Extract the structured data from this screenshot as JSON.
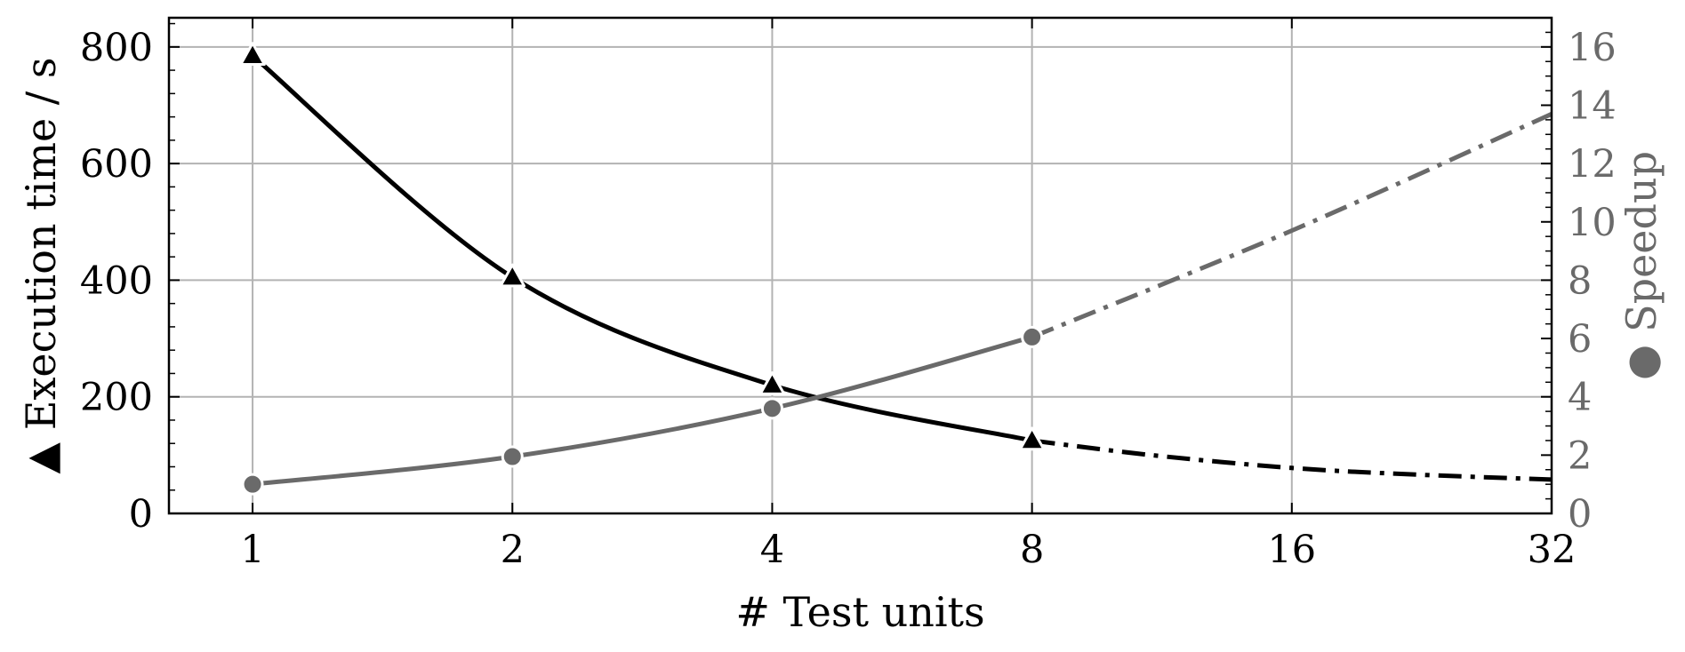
{
  "chart_data": {
    "type": "line",
    "x_scale": "log2",
    "x_ticks": [
      1,
      2,
      4,
      8,
      16,
      32
    ],
    "x_tick_labels": [
      "1",
      "2",
      "4",
      "8",
      "16",
      "32"
    ],
    "xlim": [
      0.8,
      32
    ],
    "xlabel": "# Test units",
    "grid": true,
    "y_left": {
      "label": "Execution time / s",
      "marker_label": "▲",
      "lim": [
        0,
        850
      ],
      "ticks": [
        0,
        200,
        400,
        600,
        800
      ],
      "tick_labels": [
        "0",
        "200",
        "400",
        "600",
        "800"
      ],
      "color": "#000000"
    },
    "y_right": {
      "label": "Speedup",
      "marker_label": "●",
      "lim": [
        0,
        17
      ],
      "ticks": [
        0,
        2,
        4,
        6,
        8,
        10,
        12,
        14,
        16
      ],
      "tick_labels": [
        "0",
        "2",
        "4",
        "6",
        "8",
        "10",
        "12",
        "14",
        "16"
      ],
      "color": "#6a6a6a"
    },
    "series": [
      {
        "axis": "left",
        "marker": "triangle",
        "color": "#000000",
        "measured": {
          "x": [
            1,
            2,
            4,
            8
          ],
          "y": [
            785,
            405,
            220,
            125
          ]
        },
        "extrapolated": {
          "x": [
            8,
            11,
            16,
            22,
            32
          ],
          "y": [
            125,
            100,
            78,
            67,
            58
          ]
        }
      },
      {
        "axis": "right",
        "marker": "circle",
        "color": "#6a6a6a",
        "measured": {
          "x": [
            1,
            2,
            4,
            8
          ],
          "y": [
            1.0,
            1.95,
            3.6,
            6.05
          ]
        },
        "extrapolated": {
          "x": [
            8,
            16,
            32
          ],
          "y": [
            6.05,
            9.7,
            13.7
          ]
        }
      }
    ]
  }
}
